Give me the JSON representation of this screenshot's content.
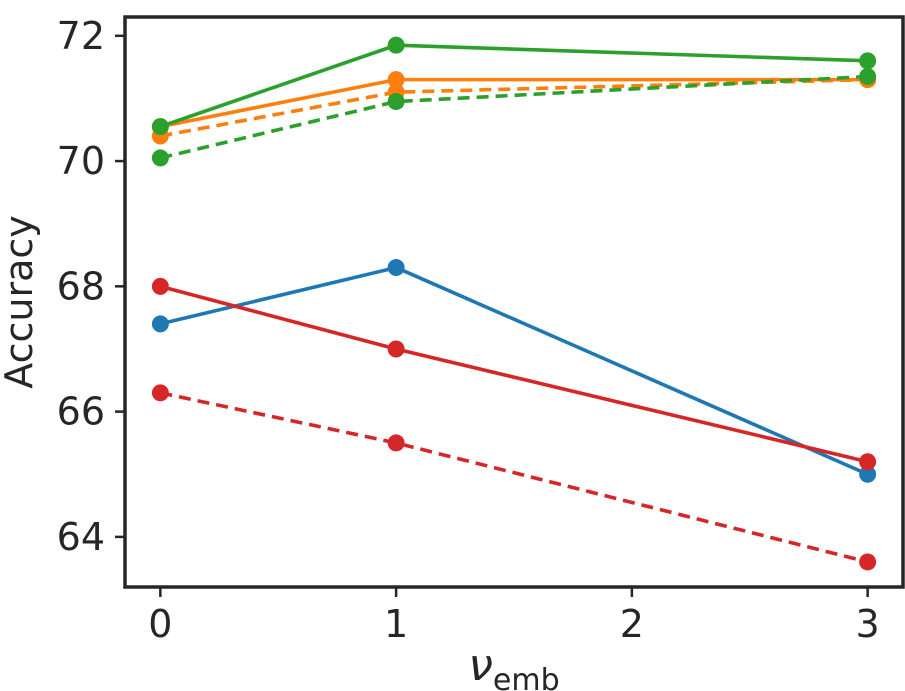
{
  "chart_data": {
    "type": "line",
    "title": "",
    "xlabel": "ν",
    "xlabel_sub": "emb",
    "ylabel": "Accuracy",
    "xlim": [
      -0.15,
      3.15
    ],
    "ylim": [
      63.2,
      72.3
    ],
    "xticks": [
      0,
      1,
      2,
      3
    ],
    "xtick_labels": [
      "0",
      "1",
      "2",
      "3"
    ],
    "yticks": [
      64,
      66,
      68,
      70,
      72
    ],
    "ytick_labels": [
      "64",
      "66",
      "68",
      "70",
      "72"
    ],
    "x": [
      0,
      1,
      3
    ],
    "series": [
      {
        "name": "blue-solid",
        "color": "#1f77b4",
        "dashed": false,
        "values": [
          67.4,
          68.3,
          65.0
        ]
      },
      {
        "name": "red-solid",
        "color": "#d62728",
        "dashed": false,
        "values": [
          68.0,
          67.0,
          65.2
        ]
      },
      {
        "name": "red-dashed",
        "color": "#d62728",
        "dashed": true,
        "values": [
          66.3,
          65.5,
          63.6
        ]
      },
      {
        "name": "orange-solid",
        "color": "#ff7f0e",
        "dashed": false,
        "values": [
          70.55,
          71.3,
          71.3
        ]
      },
      {
        "name": "orange-dashed",
        "color": "#ff7f0e",
        "dashed": true,
        "values": [
          70.4,
          71.1,
          71.3
        ]
      },
      {
        "name": "green-dashed",
        "color": "#2ca02c",
        "dashed": true,
        "values": [
          70.05,
          70.95,
          71.35
        ]
      },
      {
        "name": "green-solid",
        "color": "#2ca02c",
        "dashed": false,
        "values": [
          70.55,
          71.85,
          71.6
        ]
      }
    ]
  }
}
